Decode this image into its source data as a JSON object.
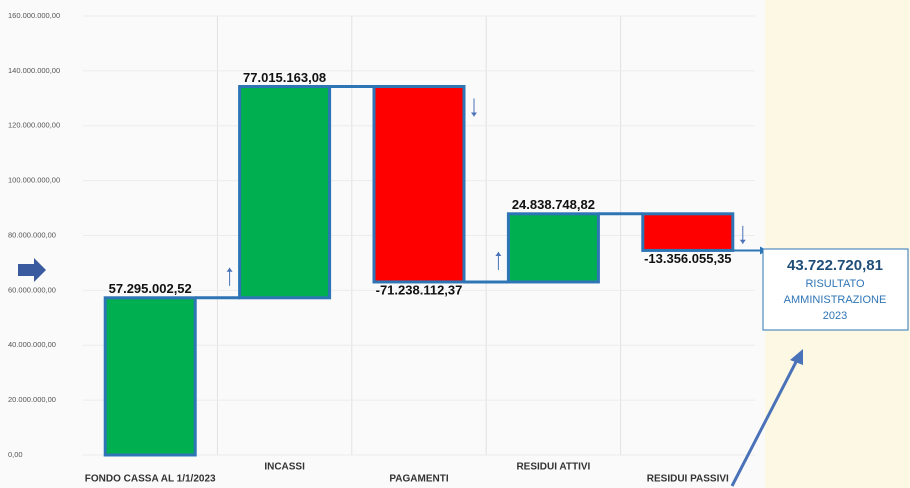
{
  "chart_data": {
    "type": "waterfall",
    "categories": [
      "FONDO CASSA AL 1/1/2023",
      "INCASSI",
      "PAGAMENTI",
      "RESIDUI ATTIVI",
      "RESIDUI PASSIVI"
    ],
    "values": [
      57295002.52,
      77015163.08,
      -71238112.37,
      24838748.82,
      -13356055.35
    ],
    "value_labels": [
      "57.295.002,52",
      "77.015.163,08",
      "-71.238.112,37",
      "24.838.748,82",
      "-13.356.055,35"
    ],
    "colors": {
      "increase": "#00b050",
      "decrease": "#ff0000",
      "border": "#2e75b6"
    },
    "ylim": [
      0,
      160000000
    ],
    "yticks": [
      {
        "value": 0,
        "label": "0,00"
      },
      {
        "value": 20000000,
        "label": "20.000.000,00"
      },
      {
        "value": 40000000,
        "label": "40.000.000,00"
      },
      {
        "value": 60000000,
        "label": "60.000.000,00"
      },
      {
        "value": 80000000,
        "label": "80.000.000,00"
      },
      {
        "value": 100000000,
        "label": "100.000.000,00"
      },
      {
        "value": 120000000,
        "label": "120.000.000,00"
      },
      {
        "value": 140000000,
        "label": "140.000.000,00"
      },
      {
        "value": 160000000,
        "label": "160.000.000,00"
      }
    ],
    "grid": true,
    "annotation": {
      "value": "43.722.720,81",
      "text": [
        "RISULTATO",
        "AMMINISTRAZIONE",
        "2023"
      ]
    }
  }
}
